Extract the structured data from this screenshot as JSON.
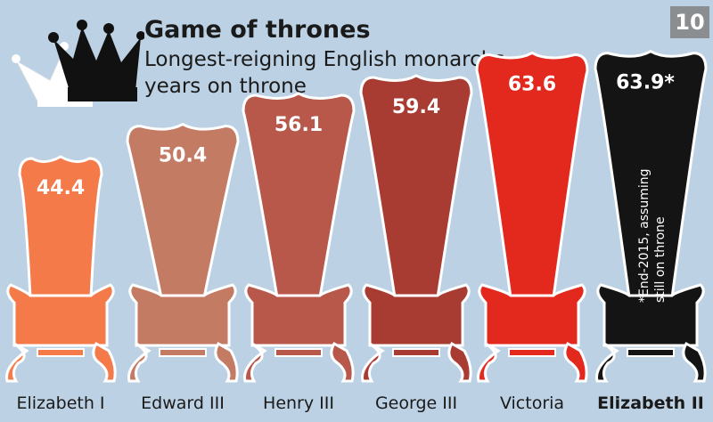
{
  "header": {
    "title": "Game of thrones",
    "subtitle_line1": "Longest-reigning English monarchs,",
    "subtitle_line2": "years on throne",
    "page_number": "10"
  },
  "icons": {
    "crown": "crown-icon",
    "throne": "throne-chair-icon"
  },
  "colors": {
    "background": "#bcd1e3",
    "thrones": [
      "#f47a4a",
      "#c47b63",
      "#b8584a",
      "#a83c32",
      "#e3281e",
      "#141414"
    ]
  },
  "chart_data": {
    "type": "bar",
    "title": "Game of thrones",
    "subtitle": "Longest-reigning English monarchs, years on throne",
    "categories": [
      "Elizabeth I",
      "Edward III",
      "Henry III",
      "George III",
      "Victoria",
      "Elizabeth II"
    ],
    "values": [
      44.4,
      50.4,
      56.1,
      59.4,
      63.6,
      63.9
    ],
    "value_labels": [
      "44.4",
      "50.4",
      "56.1",
      "59.4",
      "63.6",
      "63.9*"
    ],
    "highlight": "Elizabeth II",
    "footnote": "*End-2015, assuming still on throne",
    "footnote_line1": "*End-2015, assuming",
    "footnote_line2": "still on throne",
    "xlabel": "",
    "ylabel": "",
    "grid": false,
    "legend": "none"
  }
}
